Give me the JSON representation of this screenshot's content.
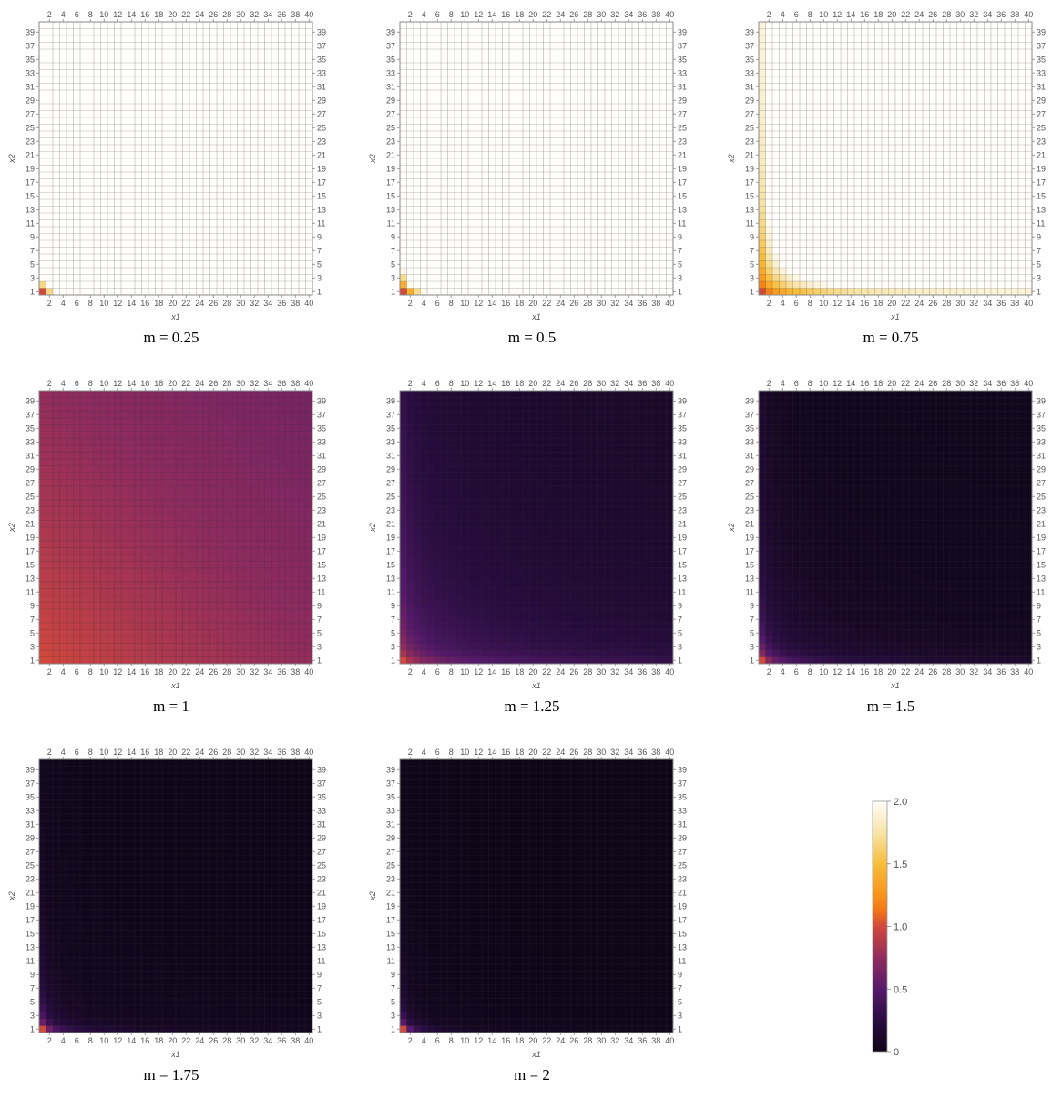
{
  "chart_data": {
    "type": "heatmap",
    "grid": {
      "nx": 40,
      "ny": 40,
      "xrange": [
        1,
        40
      ],
      "yrange": [
        1,
        40
      ]
    },
    "xlabel": "x1",
    "ylabel": "x2",
    "x_ticks_bottom": [
      2,
      4,
      6,
      8,
      10,
      12,
      14,
      16,
      18,
      20,
      22,
      24,
      26,
      28,
      30,
      32,
      34,
      36,
      38,
      40
    ],
    "x_ticks_top": [
      2,
      4,
      6,
      8,
      10,
      12,
      14,
      16,
      18,
      20,
      22,
      24,
      26,
      28,
      30,
      32,
      34,
      36,
      38,
      40
    ],
    "y_ticks": [
      1,
      3,
      5,
      7,
      9,
      11,
      13,
      15,
      17,
      19,
      21,
      23,
      25,
      27,
      29,
      31,
      33,
      35,
      37,
      39
    ],
    "panels": [
      {
        "caption": "m = 0.25",
        "m": 0.25
      },
      {
        "caption": "m = 0.5",
        "m": 0.5
      },
      {
        "caption": "m = 0.75",
        "m": 0.75
      },
      {
        "caption": "m = 1",
        "m": 1
      },
      {
        "caption": "m = 1.25",
        "m": 1.25
      },
      {
        "caption": "m = 1.5",
        "m": 1.5
      },
      {
        "caption": "m = 1.75",
        "m": 1.75
      },
      {
        "caption": "m = 2",
        "m": 2
      }
    ],
    "colorbar": {
      "range": [
        0,
        2
      ],
      "ticks": [
        "0",
        "0.5",
        "1.0",
        "1.5",
        "2.0"
      ],
      "tick_values": [
        0,
        0.5,
        1.0,
        1.5,
        2.0
      ],
      "colormap": [
        [
          0.0,
          "#0f0618"
        ],
        [
          0.12,
          "#280c3f"
        ],
        [
          0.25,
          "#561a6b"
        ],
        [
          0.37,
          "#8e2b5e"
        ],
        [
          0.5,
          "#d1483c"
        ],
        [
          0.56,
          "#f07418"
        ],
        [
          0.62,
          "#f7921a"
        ],
        [
          0.75,
          "#f8bd3a"
        ],
        [
          0.87,
          "#f7e3a3"
        ],
        [
          1.0,
          "#fffefb"
        ]
      ]
    }
  }
}
